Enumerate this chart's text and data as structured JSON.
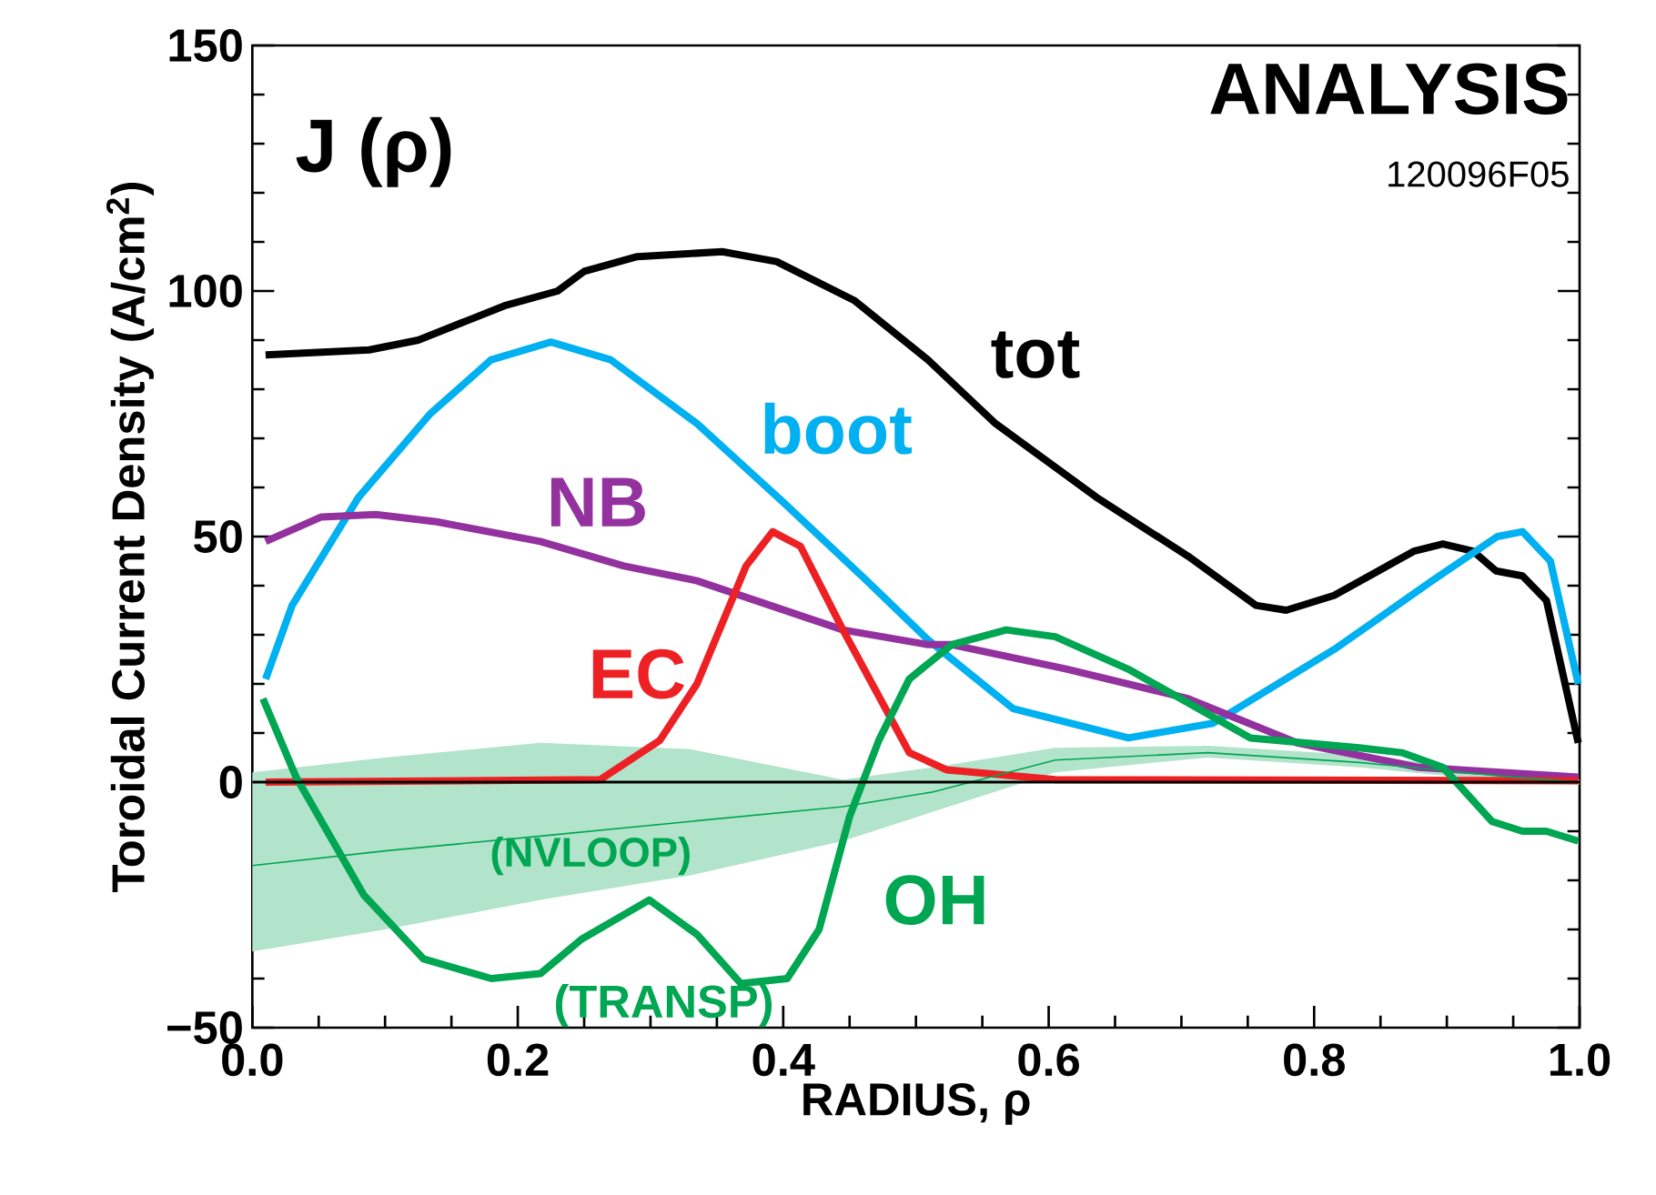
{
  "chart_data": {
    "type": "line",
    "xlabel": "RADIUS,  ρ",
    "ylabel": "Toroidal Current Density  (A/cm$^{2}$)",
    "xlim": [
      0,
      1
    ],
    "ylim": [
      -50,
      150
    ],
    "xticks": [
      {
        "value": 0,
        "label": "0.0"
      },
      {
        "value": 0.2,
        "label": "0.2"
      },
      {
        "value": 0.4,
        "label": "0.4"
      },
      {
        "value": 0.6,
        "label": "0.6"
      },
      {
        "value": 0.8,
        "label": "0.8"
      },
      {
        "value": 1,
        "label": "1.0"
      }
    ],
    "yticks": [
      {
        "value": -50,
        "label": "−50"
      },
      0,
      50,
      100,
      150
    ],
    "marker": "none",
    "line_style": "solid",
    "grid": false,
    "ref_lines": [
      {
        "axis": "y",
        "value": 0,
        "color": "#000000"
      }
    ],
    "annotations": [
      "J (ρ)",
      "ANALYSIS",
      "120096F05",
      "(TRANSP)"
    ],
    "series": [
      {
        "name": "tot",
        "color": "#000000",
        "x": [
          0.01,
          0.088,
          0.125,
          0.19,
          0.23,
          0.25,
          0.29,
          0.354,
          0.395,
          0.454,
          0.509,
          0.56,
          0.636,
          0.705,
          0.756,
          0.779,
          0.815,
          0.875,
          0.897,
          0.92,
          0.937,
          0.957,
          0.975,
          0.999
        ],
        "values": [
          87,
          88,
          90,
          97,
          100,
          104,
          107,
          108,
          106,
          98,
          86,
          73,
          58,
          46,
          36,
          35,
          38,
          47,
          48.5,
          47,
          43,
          42,
          37,
          8
        ]
      },
      {
        "name": "boot",
        "color": "#00b0f0",
        "x": [
          0.01,
          0.03,
          0.08,
          0.134,
          0.18,
          0.225,
          0.27,
          0.335,
          0.4,
          0.463,
          0.509,
          0.518,
          0.573,
          0.66,
          0.724,
          0.815,
          0.889,
          0.938,
          0.957,
          0.978,
          0.999
        ],
        "values": [
          21,
          36,
          58,
          75,
          86,
          89.6,
          86,
          73,
          57,
          41,
          29,
          27,
          15,
          9,
          12,
          27,
          41,
          50,
          51,
          45,
          20
        ]
      },
      {
        "name": "NB",
        "color": "#93329e",
        "x": [
          0.01,
          0.052,
          0.093,
          0.139,
          0.217,
          0.28,
          0.335,
          0.39,
          0.445,
          0.509,
          0.527,
          0.614,
          0.705,
          0.787,
          0.879,
          0.999
        ],
        "values": [
          49,
          54,
          54.5,
          53,
          49,
          44,
          41,
          36,
          31,
          28,
          28,
          23,
          17,
          8,
          3,
          1
        ]
      },
      {
        "name": "EC",
        "color": "#ed2024",
        "x": [
          0.01,
          0.262,
          0.307,
          0.335,
          0.372,
          0.392,
          0.413,
          0.445,
          0.495,
          0.523,
          0.605,
          0.999
        ],
        "values": [
          0,
          0.5,
          8.5,
          20,
          44,
          51,
          48,
          31,
          6,
          2.5,
          0.5,
          0.3
        ]
      },
      {
        "name": "OH",
        "color": "#00a651",
        "x": [
          0.008,
          0.033,
          0.084,
          0.129,
          0.18,
          0.217,
          0.248,
          0.299,
          0.335,
          0.368,
          0.403,
          0.427,
          0.45,
          0.472,
          0.495,
          0.527,
          0.568,
          0.605,
          0.66,
          0.752,
          0.834,
          0.866,
          0.897,
          0.934,
          0.957,
          0.975,
          0.999
        ],
        "values": [
          17,
          1,
          -23,
          -36,
          -40,
          -39,
          -32,
          -24,
          -31,
          -41,
          -40,
          -30,
          -7,
          8.5,
          21,
          28,
          31,
          29.6,
          23,
          9,
          7,
          6,
          3,
          -8,
          -10,
          -10,
          -12
        ]
      },
      {
        "name": "(NVLOOP)",
        "color": "#00a651",
        "x": [
          0,
          0.1,
          0.217,
          0.33,
          0.445,
          0.513,
          0.605,
          0.72,
          0.834,
          0.95,
          1.0
        ],
        "values": [
          -17,
          -14,
          -11,
          -8,
          -5,
          -2,
          4.5,
          6,
          4,
          1,
          0
        ],
        "lower": [
          -34.5,
          -30,
          -24,
          -19,
          -12,
          -6,
          2,
          5,
          3,
          0,
          -0.5
        ],
        "upper": [
          2,
          5,
          8,
          6.7,
          0.5,
          3,
          7,
          7.4,
          5.5,
          2,
          0.5
        ]
      }
    ]
  }
}
